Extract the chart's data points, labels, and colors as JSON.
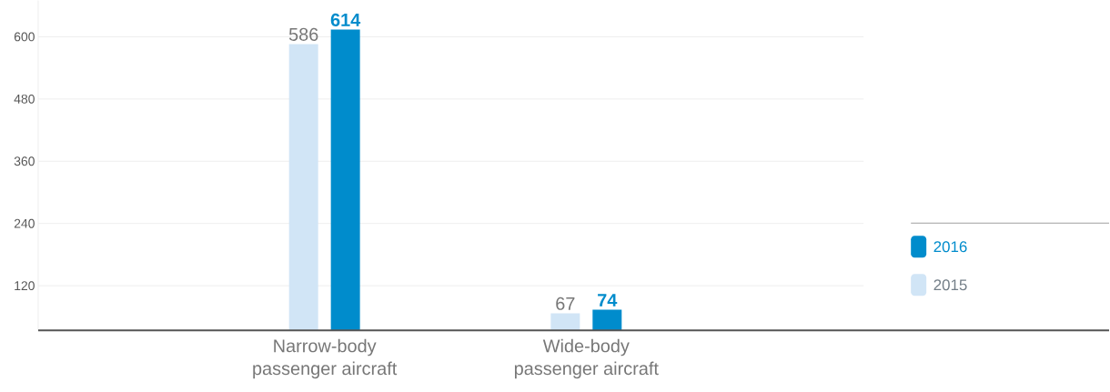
{
  "chart_data": {
    "type": "bar",
    "categories": [
      "Narrow-body\npassenger aircraft",
      "Wide-body\npassenger aircraft"
    ],
    "series": [
      {
        "name": "2015",
        "color": "#d1e5f6",
        "values": [
          586,
          67
        ]
      },
      {
        "name": "2016",
        "color": "#008ccc",
        "values": [
          614,
          74
        ]
      }
    ],
    "ylim": [
      34,
      670
    ],
    "yticks": [
      120,
      240,
      360,
      480,
      600
    ],
    "grid": "y",
    "legend": "right",
    "data_labels": true
  }
}
